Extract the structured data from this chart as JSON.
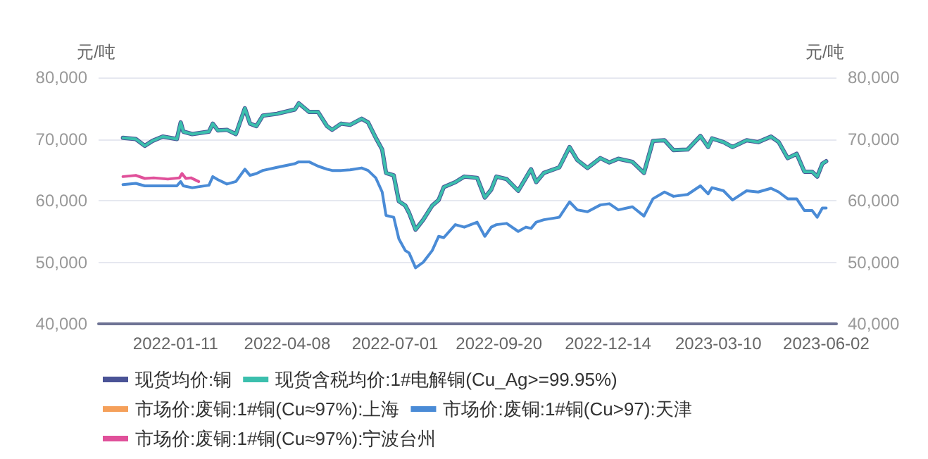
{
  "chart_data": {
    "type": "line",
    "ylabel": "元/吨",
    "y2label": "元/吨",
    "ylim": [
      40000,
      80000
    ],
    "yticks": [
      {
        "value": 40000,
        "label": "40,000"
      },
      {
        "value": 50000,
        "label": "50,000"
      },
      {
        "value": 60000,
        "label": "60,000"
      },
      {
        "value": 70000,
        "label": "70,000"
      },
      {
        "value": 80000,
        "label": "80,000"
      }
    ],
    "y2lim": [
      40000,
      80000
    ],
    "y2ticks": [
      {
        "value": 40000,
        "label": "40,000"
      },
      {
        "value": 50000,
        "label": "50,000"
      },
      {
        "value": 60000,
        "label": "60,000"
      },
      {
        "value": 70000,
        "label": "70,000"
      },
      {
        "value": 80000,
        "label": "80,000"
      }
    ],
    "xlim": [
      "2021-11-12",
      "2023-06-10"
    ],
    "xticks": [
      "2022-01-11",
      "2022-04-08",
      "2022-07-01",
      "2022-09-20",
      "2022-12-14",
      "2023-03-10",
      "2023-06-02"
    ],
    "grid": "y",
    "legend": "bottom",
    "marker": "none",
    "line_style": "solid",
    "series": [
      {
        "name": "现货均价:铜",
        "color": "#4a5396",
        "x": [
          "2021-12-01",
          "2021-12-11",
          "2021-12-18",
          "2021-12-24",
          "2022-01-01",
          "2022-01-12",
          "2022-01-15",
          "2022-01-17",
          "2022-01-24",
          "2022-02-06",
          "2022-02-09",
          "2022-02-13",
          "2022-02-20",
          "2022-02-27",
          "2022-03-06",
          "2022-03-10",
          "2022-03-15",
          "2022-03-20",
          "2022-03-31",
          "2022-04-14",
          "2022-04-17",
          "2022-04-25",
          "2022-05-02",
          "2022-05-09",
          "2022-05-13",
          "2022-05-20",
          "2022-05-27",
          "2022-06-05",
          "2022-06-10",
          "2022-06-16",
          "2022-06-21",
          "2022-06-24",
          "2022-06-30",
          "2022-07-04",
          "2022-07-09",
          "2022-07-12",
          "2022-07-17",
          "2022-07-23",
          "2022-07-30",
          "2022-08-04",
          "2022-08-08",
          "2022-08-17",
          "2022-08-24",
          "2022-09-03",
          "2022-09-09",
          "2022-09-14",
          "2022-09-18",
          "2022-09-26",
          "2022-10-05",
          "2022-10-11",
          "2022-10-15",
          "2022-10-19",
          "2022-10-25",
          "2022-11-06",
          "2022-11-14",
          "2022-11-20",
          "2022-11-28",
          "2022-12-08",
          "2022-12-15",
          "2022-12-22",
          "2023-01-02",
          "2023-01-11",
          "2023-01-18",
          "2023-01-27",
          "2023-02-03",
          "2023-02-14",
          "2023-02-24",
          "2023-03-02",
          "2023-03-05",
          "2023-03-14",
          "2023-03-21",
          "2023-04-01",
          "2023-04-10",
          "2023-04-20",
          "2023-04-26",
          "2023-05-03",
          "2023-05-10",
          "2023-05-16",
          "2023-05-22",
          "2023-05-26",
          "2023-05-30",
          "2023-06-02"
        ],
        "values": [
          70200,
          70000,
          68900,
          69700,
          70400,
          70000,
          72700,
          71200,
          70800,
          71200,
          72500,
          71400,
          71500,
          70800,
          75000,
          72500,
          72100,
          73800,
          74100,
          74800,
          75800,
          74400,
          74400,
          72100,
          71500,
          72500,
          72300,
          73300,
          72700,
          70200,
          68300,
          64500,
          64100,
          59900,
          59200,
          58000,
          55300,
          56900,
          59200,
          60100,
          62200,
          63000,
          63900,
          63700,
          60500,
          61800,
          63900,
          63500,
          61600,
          63700,
          65100,
          63000,
          64500,
          65400,
          68700,
          66600,
          65300,
          66900,
          66200,
          66800,
          66300,
          64500,
          69700,
          69800,
          68200,
          68300,
          70500,
          68700,
          70100,
          69500,
          68700,
          69800,
          69500,
          70400,
          69500,
          66900,
          67600,
          64700,
          64700,
          63900,
          66000,
          66400
        ]
      },
      {
        "name": "现货含税均价:1#电解铜(Cu_Ag>=99.95%)",
        "color": "#3bbfad",
        "x": [
          "2021-12-01",
          "2021-12-11",
          "2021-12-18",
          "2021-12-24",
          "2022-01-01",
          "2022-01-12",
          "2022-01-15",
          "2022-01-17",
          "2022-01-24",
          "2022-02-06",
          "2022-02-09",
          "2022-02-13",
          "2022-02-20",
          "2022-02-27",
          "2022-03-06",
          "2022-03-10",
          "2022-03-15",
          "2022-03-20",
          "2022-03-31",
          "2022-04-14",
          "2022-04-17",
          "2022-04-25",
          "2022-05-02",
          "2022-05-09",
          "2022-05-13",
          "2022-05-20",
          "2022-05-27",
          "2022-06-05",
          "2022-06-10",
          "2022-06-16",
          "2022-06-21",
          "2022-06-24",
          "2022-06-30",
          "2022-07-04",
          "2022-07-09",
          "2022-07-12",
          "2022-07-17",
          "2022-07-23",
          "2022-07-30",
          "2022-08-04",
          "2022-08-08",
          "2022-08-17",
          "2022-08-24",
          "2022-09-03",
          "2022-09-09",
          "2022-09-14",
          "2022-09-18",
          "2022-09-26",
          "2022-10-05",
          "2022-10-11",
          "2022-10-15",
          "2022-10-19",
          "2022-10-25",
          "2022-11-06",
          "2022-11-14",
          "2022-11-20",
          "2022-11-28",
          "2022-12-08",
          "2022-12-15",
          "2022-12-22",
          "2023-01-02",
          "2023-01-11",
          "2023-01-18",
          "2023-01-27",
          "2023-02-03",
          "2023-02-14",
          "2023-02-24",
          "2023-03-02",
          "2023-03-05",
          "2023-03-14",
          "2023-03-21",
          "2023-04-01",
          "2023-04-10",
          "2023-04-20",
          "2023-04-26",
          "2023-05-03",
          "2023-05-10",
          "2023-05-16",
          "2023-05-22",
          "2023-05-26",
          "2023-05-30",
          "2023-06-02"
        ],
        "values": [
          70200,
          70000,
          68900,
          69700,
          70400,
          70000,
          72700,
          71200,
          70800,
          71200,
          72500,
          71400,
          71500,
          70800,
          75000,
          72500,
          72100,
          73800,
          74100,
          74800,
          75800,
          74400,
          74400,
          72100,
          71500,
          72500,
          72300,
          73300,
          72700,
          70200,
          68300,
          64500,
          64100,
          59900,
          59200,
          58000,
          55300,
          56900,
          59200,
          60100,
          62200,
          63000,
          63900,
          63700,
          60500,
          61800,
          63900,
          63500,
          61600,
          63700,
          65100,
          63000,
          64500,
          65400,
          68700,
          66600,
          65300,
          66900,
          66200,
          66800,
          66300,
          64500,
          69700,
          69800,
          68200,
          68300,
          70500,
          68700,
          70100,
          69500,
          68700,
          69800,
          69500,
          70400,
          69500,
          66900,
          67600,
          64700,
          64700,
          63900,
          66000,
          66400
        ]
      },
      {
        "name": "市场价:废铜:1#铜(Cu≈97%):上海",
        "color": "#f5a05a"
      },
      {
        "name": "市场价:废铜:1#铜(Cu>97):天津",
        "color": "#4a8bd6",
        "x": [
          "2021-12-01",
          "2021-12-11",
          "2021-12-18",
          "2021-12-24",
          "2022-01-01",
          "2022-01-12",
          "2022-01-15",
          "2022-01-17",
          "2022-01-24",
          "2022-02-06",
          "2022-02-09",
          "2022-02-13",
          "2022-02-20",
          "2022-02-27",
          "2022-03-06",
          "2022-03-10",
          "2022-03-15",
          "2022-03-20",
          "2022-03-31",
          "2022-04-14",
          "2022-04-17",
          "2022-04-25",
          "2022-05-02",
          "2022-05-09",
          "2022-05-13",
          "2022-05-20",
          "2022-05-27",
          "2022-06-05",
          "2022-06-10",
          "2022-06-16",
          "2022-06-21",
          "2022-06-24",
          "2022-06-30",
          "2022-07-04",
          "2022-07-09",
          "2022-07-12",
          "2022-07-17",
          "2022-07-23",
          "2022-07-30",
          "2022-08-04",
          "2022-08-08",
          "2022-08-17",
          "2022-08-24",
          "2022-09-03",
          "2022-09-09",
          "2022-09-14",
          "2022-09-18",
          "2022-09-26",
          "2022-10-05",
          "2022-10-11",
          "2022-10-15",
          "2022-10-19",
          "2022-10-25",
          "2022-11-06",
          "2022-11-14",
          "2022-11-20",
          "2022-11-28",
          "2022-12-08",
          "2022-12-15",
          "2022-12-22",
          "2023-01-02",
          "2023-01-11",
          "2023-01-18",
          "2023-01-27",
          "2023-02-03",
          "2023-02-14",
          "2023-02-24",
          "2023-03-02",
          "2023-03-05",
          "2023-03-14",
          "2023-03-21",
          "2023-04-01",
          "2023-04-10",
          "2023-04-20",
          "2023-04-26",
          "2023-05-03",
          "2023-05-10",
          "2023-05-16",
          "2023-05-22",
          "2023-05-26",
          "2023-05-30",
          "2023-06-02"
        ],
        "values": [
          62600,
          62800,
          62400,
          62400,
          62400,
          62400,
          63100,
          62400,
          62100,
          62500,
          63900,
          63400,
          62700,
          63100,
          65100,
          64100,
          64400,
          64900,
          65400,
          66000,
          66300,
          66300,
          65600,
          65100,
          64900,
          64900,
          65000,
          65300,
          64900,
          63700,
          61400,
          57600,
          57300,
          53800,
          51900,
          51500,
          49100,
          50000,
          51900,
          54200,
          54000,
          56100,
          55700,
          56500,
          54200,
          55700,
          56100,
          56300,
          55000,
          55700,
          55500,
          56500,
          56900,
          57300,
          59800,
          58500,
          58200,
          59300,
          59500,
          58500,
          59000,
          57500,
          60300,
          61400,
          60700,
          61000,
          62400,
          61100,
          62100,
          61600,
          60100,
          61600,
          61400,
          62000,
          61400,
          60300,
          60300,
          58400,
          58400,
          57300,
          58800,
          58800
        ]
      },
      {
        "name": "市场价:废铜:1#铜(Cu≈97%):宁波台州",
        "color": "#e0509a",
        "x": [
          "2021-12-01",
          "2021-12-11",
          "2021-12-18",
          "2021-12-25",
          "2022-01-05",
          "2022-01-14",
          "2022-01-16",
          "2022-01-19",
          "2022-01-23",
          "2022-01-29"
        ],
        "values": [
          63900,
          64100,
          63600,
          63700,
          63500,
          63700,
          64400,
          63600,
          63700,
          63100
        ]
      }
    ]
  }
}
